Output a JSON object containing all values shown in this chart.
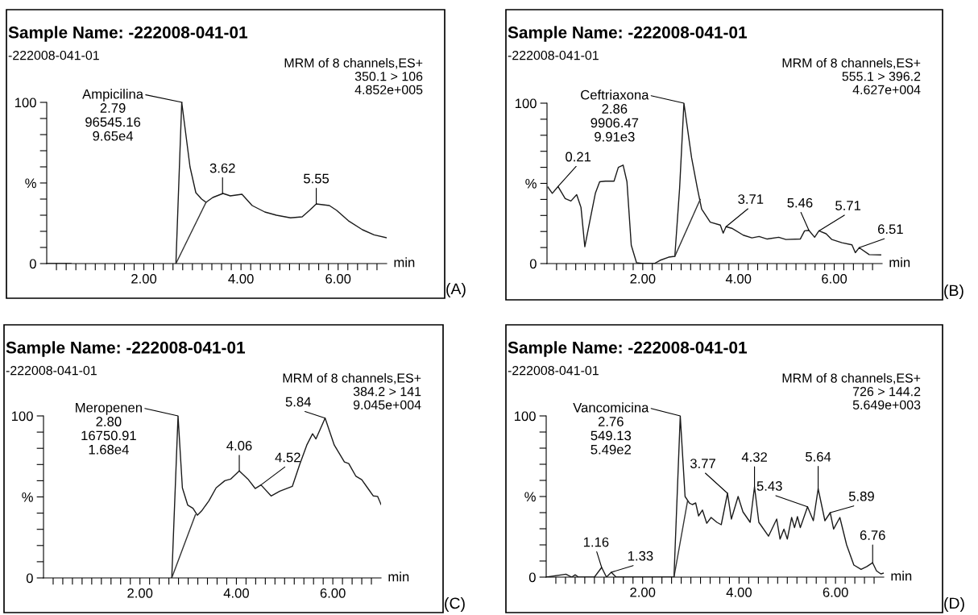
{
  "chart_data": [
    {
      "type": "line",
      "title": "Sample Name: -222008-041-01",
      "subtitle": "-222008-041-01",
      "xlabel": "min",
      "series": [
        {
          "color": "#1a1a1a",
          "x": [
            0,
            0.5,
            1.0,
            2.66,
            2.78,
            2.95,
            3.07,
            3.19,
            3.28,
            3.42,
            3.63,
            3.78,
            4.02,
            4.23,
            4.49,
            4.73,
            5.02,
            5.26,
            5.41,
            5.55,
            5.82,
            5.97,
            6.21,
            6.5,
            6.74,
            7.0
          ],
          "values": [
            0,
            0,
            null,
            0,
            100,
            60,
            44,
            40,
            38,
            41,
            43.5,
            42,
            43,
            36,
            32,
            30,
            28.4,
            29,
            33,
            37,
            36,
            33,
            26.6,
            21,
            17.8,
            16
          ]
        },
        {
          "color": "#333333",
          "x": [
            2.66,
            3.28
          ],
          "values": [
            0,
            38
          ]
        }
      ],
      "xlim": [
        0,
        7
      ],
      "ylim": [
        0,
        100
      ],
      "xticks": [
        {
          "value": 0.2,
          "label": null
        },
        {
          "value": 0.4,
          "label": null
        },
        {
          "value": 0.6,
          "label": null
        },
        {
          "value": 0.8,
          "label": null
        },
        {
          "value": 1,
          "label": null
        },
        {
          "value": 1.2,
          "label": null
        },
        {
          "value": 1.4,
          "label": null
        },
        {
          "value": 1.6,
          "label": null
        },
        {
          "value": 1.8,
          "label": null
        },
        {
          "value": 2,
          "label": "2.00"
        },
        {
          "value": 2.2,
          "label": null
        },
        {
          "value": 2.4,
          "label": null
        },
        {
          "value": 2.6,
          "label": null
        },
        {
          "value": 2.8,
          "label": null
        },
        {
          "value": 3,
          "label": null
        },
        {
          "value": 3.2,
          "label": null
        },
        {
          "value": 3.4,
          "label": null
        },
        {
          "value": 3.6,
          "label": null
        },
        {
          "value": 3.8,
          "label": null
        },
        {
          "value": 4,
          "label": "4.00"
        },
        {
          "value": 4.2,
          "label": null
        },
        {
          "value": 4.4,
          "label": null
        },
        {
          "value": 4.6,
          "label": null
        },
        {
          "value": 4.8,
          "label": null
        },
        {
          "value": 5,
          "label": null
        },
        {
          "value": 5.2,
          "label": null
        },
        {
          "value": 5.4,
          "label": null
        },
        {
          "value": 5.6,
          "label": null
        },
        {
          "value": 5.8,
          "label": null
        },
        {
          "value": 6,
          "label": "6.00"
        },
        {
          "value": 6.2,
          "label": null
        },
        {
          "value": 6.4,
          "label": null
        },
        {
          "value": 6.6,
          "label": null
        },
        {
          "value": 6.8,
          "label": null
        }
      ],
      "yticks": [
        0,
        {
          "value": 10,
          "label": null
        },
        {
          "value": 20,
          "label": null
        },
        {
          "value": 30,
          "label": null
        },
        {
          "value": 40,
          "label": null
        },
        {
          "value": 50,
          "label": "%"
        },
        {
          "value": 60,
          "label": null
        },
        {
          "value": 70,
          "label": null
        },
        {
          "value": 80,
          "label": null
        },
        {
          "value": 90,
          "label": null
        },
        100
      ],
      "annotations": [
        {
          "text": "Ampicilina\n2.79\n96545.16\n9.65e4",
          "x": 2.79,
          "y": 100
        },
        {
          "text": "3.62",
          "x": 3.62,
          "y": 43.5
        },
        {
          "text": "5.55",
          "x": 5.55,
          "y": 37
        },
        "MRM of 8 channels,ES+\n350.1 > 106\n4.852e+005",
        "(A)"
      ]
    },
    {
      "type": "line",
      "title": "Sample Name: -222008-041-01",
      "subtitle": "-222008-041-01",
      "xlabel": "min",
      "series": [
        {
          "color": "#1a1a1a",
          "x": [
            0.02,
            0.11,
            0.23,
            0.38,
            0.5,
            0.62,
            0.71,
            0.79,
            0.89,
            1.01,
            1.1,
            1.22,
            1.4,
            1.49,
            1.59,
            1.67,
            1.76,
            1.87,
            2.0,
            2.24,
            2.36,
            2.54,
            2.67,
            2.77,
            2.86,
            3.02,
            3.14,
            3.23,
            3.41,
            3.62,
            3.68,
            3.74,
            3.86,
            4.1,
            4.28,
            4.43,
            4.6,
            4.84,
            4.99,
            5.29,
            5.38,
            5.47,
            5.59,
            5.68,
            5.83,
            5.95,
            6.16,
            6.37,
            6.44,
            6.52,
            6.73,
            6.97
          ],
          "values": [
            47.7,
            43.8,
            48,
            40.5,
            39,
            43,
            35,
            10.5,
            25.8,
            43.8,
            51,
            51.4,
            51.4,
            60,
            61.4,
            51,
            11.4,
            0.5,
            0,
            0,
            2,
            4,
            4.5,
            47,
            100,
            66,
            47,
            34,
            25.8,
            24,
            19,
            23,
            22,
            17.7,
            16,
            16.9,
            15.3,
            16.4,
            15,
            15.3,
            20.4,
            20.7,
            16.4,
            20.4,
            18.6,
            15,
            13,
            11.7,
            6.8,
            9.9,
            5.6,
            5.4
          ]
        },
        {
          "color": "#333333",
          "x": [
            2.67,
            3.2
          ],
          "values": [
            4.5,
            40
          ]
        }
      ],
      "xlim": [
        0,
        7
      ],
      "ylim": [
        0,
        100
      ],
      "xticks": [
        {
          "value": 0.2,
          "label": null
        },
        {
          "value": 0.4,
          "label": null
        },
        {
          "value": 0.6,
          "label": null
        },
        {
          "value": 0.8,
          "label": null
        },
        {
          "value": 1,
          "label": null
        },
        {
          "value": 1.2,
          "label": null
        },
        {
          "value": 1.4,
          "label": null
        },
        {
          "value": 1.6,
          "label": null
        },
        {
          "value": 1.8,
          "label": null
        },
        {
          "value": 2,
          "label": "2.00"
        },
        {
          "value": 2.2,
          "label": null
        },
        {
          "value": 2.4,
          "label": null
        },
        {
          "value": 2.6,
          "label": null
        },
        {
          "value": 2.8,
          "label": null
        },
        {
          "value": 3,
          "label": null
        },
        {
          "value": 3.2,
          "label": null
        },
        {
          "value": 3.4,
          "label": null
        },
        {
          "value": 3.6,
          "label": null
        },
        {
          "value": 3.8,
          "label": null
        },
        {
          "value": 4,
          "label": "4.00"
        },
        {
          "value": 4.2,
          "label": null
        },
        {
          "value": 4.4,
          "label": null
        },
        {
          "value": 4.6,
          "label": null
        },
        {
          "value": 4.8,
          "label": null
        },
        {
          "value": 5,
          "label": null
        },
        {
          "value": 5.2,
          "label": null
        },
        {
          "value": 5.4,
          "label": null
        },
        {
          "value": 5.6,
          "label": null
        },
        {
          "value": 5.8,
          "label": null
        },
        {
          "value": 6,
          "label": "6.00"
        },
        {
          "value": 6.2,
          "label": null
        },
        {
          "value": 6.4,
          "label": null
        },
        {
          "value": 6.6,
          "label": null
        },
        {
          "value": 6.8,
          "label": null
        }
      ],
      "yticks": [
        0,
        {
          "value": 10,
          "label": null
        },
        {
          "value": 20,
          "label": null
        },
        {
          "value": 30,
          "label": null
        },
        {
          "value": 40,
          "label": null
        },
        {
          "value": 50,
          "label": "%"
        },
        {
          "value": 60,
          "label": null
        },
        {
          "value": 70,
          "label": null
        },
        {
          "value": 80,
          "label": null
        },
        {
          "value": 90,
          "label": null
        },
        100
      ],
      "annotations": [
        {
          "text": "Ceftriaxona\n2.86\n9906.47\n9.91e3",
          "x": 2.86,
          "y": 100
        },
        {
          "text": "0.21",
          "x": 0.23,
          "y": 48
        },
        {
          "text": "3.71",
          "x": 3.74,
          "y": 23
        },
        {
          "text": "5.46",
          "x": 5.47,
          "y": 20.7
        },
        {
          "text": "5.71",
          "x": 5.68,
          "y": 20.4
        },
        {
          "text": "6.51",
          "x": 6.52,
          "y": 9.9
        },
        "MRM of 8 channels,ES+\n555.1 > 396.2\n4.627e+004",
        "(B)"
      ]
    },
    {
      "type": "line",
      "title": "Sample Name: -222008-041-01",
      "subtitle": "-222008-041-01",
      "xlabel": "min",
      "series": [
        {
          "color": "#1a1a1a",
          "x": [
            2.66,
            2.79,
            2.88,
            2.99,
            3.1,
            3.19,
            3.28,
            3.43,
            3.58,
            3.76,
            3.88,
            4.06,
            4.24,
            4.39,
            4.51,
            4.72,
            4.9,
            5.16,
            5.31,
            5.46,
            5.58,
            5.65,
            5.84,
            6.03,
            6.24,
            6.33,
            6.48,
            6.6,
            6.72,
            6.84,
            6.93,
            7.0
          ],
          "values": [
            0,
            100,
            55.6,
            45,
            43,
            38.7,
            41.4,
            47.6,
            55.6,
            60,
            61,
            66,
            61,
            55.2,
            57.4,
            50.6,
            53.5,
            56.5,
            69.8,
            82,
            89,
            85.8,
            98.6,
            82,
            71.6,
            70.6,
            62.7,
            60.6,
            55.6,
            50.6,
            50.3,
            45.3
          ]
        },
        {
          "color": "#333333",
          "x": [
            2.66,
            3.15
          ],
          "values": [
            0,
            39
          ]
        }
      ],
      "xlim": [
        0,
        7
      ],
      "ylim": [
        0,
        100
      ],
      "xticks": [
        {
          "value": 0.2,
          "label": null
        },
        {
          "value": 0.4,
          "label": null
        },
        {
          "value": 0.6,
          "label": null
        },
        {
          "value": 0.8,
          "label": null
        },
        {
          "value": 1,
          "label": null
        },
        {
          "value": 1.2,
          "label": null
        },
        {
          "value": 1.4,
          "label": null
        },
        {
          "value": 1.6,
          "label": null
        },
        {
          "value": 1.8,
          "label": null
        },
        {
          "value": 2,
          "label": "2.00"
        },
        {
          "value": 2.2,
          "label": null
        },
        {
          "value": 2.4,
          "label": null
        },
        {
          "value": 2.6,
          "label": null
        },
        {
          "value": 2.8,
          "label": null
        },
        {
          "value": 3,
          "label": null
        },
        {
          "value": 3.2,
          "label": null
        },
        {
          "value": 3.4,
          "label": null
        },
        {
          "value": 3.6,
          "label": null
        },
        {
          "value": 3.8,
          "label": null
        },
        {
          "value": 4,
          "label": "4.00"
        },
        {
          "value": 4.2,
          "label": null
        },
        {
          "value": 4.4,
          "label": null
        },
        {
          "value": 4.6,
          "label": null
        },
        {
          "value": 4.8,
          "label": null
        },
        {
          "value": 5,
          "label": null
        },
        {
          "value": 5.2,
          "label": null
        },
        {
          "value": 5.4,
          "label": null
        },
        {
          "value": 5.6,
          "label": null
        },
        {
          "value": 5.8,
          "label": null
        },
        {
          "value": 6,
          "label": "6.00"
        },
        {
          "value": 6.2,
          "label": null
        },
        {
          "value": 6.4,
          "label": null
        },
        {
          "value": 6.6,
          "label": null
        },
        {
          "value": 6.8,
          "label": null
        }
      ],
      "yticks": [
        0,
        {
          "value": 10,
          "label": null
        },
        {
          "value": 20,
          "label": null
        },
        {
          "value": 30,
          "label": null
        },
        {
          "value": 40,
          "label": null
        },
        {
          "value": 50,
          "label": "%"
        },
        {
          "value": 60,
          "label": null
        },
        {
          "value": 70,
          "label": null
        },
        {
          "value": 80,
          "label": null
        },
        {
          "value": 90,
          "label": null
        },
        100
      ],
      "annotations": [
        {
          "text": "Meropenen\n2.80\n16750.91\n1.68e4",
          "x": 2.79,
          "y": 100
        },
        {
          "text": "4.06",
          "x": 4.06,
          "y": 66
        },
        {
          "text": "4.52",
          "x": 4.51,
          "y": 57.4
        },
        {
          "text": "5.84",
          "x": 5.84,
          "y": 98.6
        },
        "MRM of 8 channels,ES+\n384.2 > 141\n9.045e+004",
        "(C)"
      ]
    },
    {
      "type": "line",
      "title": "Sample Name: -222008-041-01",
      "subtitle": "-222008-041-01",
      "xlabel": "min",
      "series": [
        {
          "color": "#1a1a1a",
          "x": [
            0,
            0.41,
            0.53,
            0.6,
            0.67,
            1.0,
            1.15,
            1.25,
            1.35,
            1.45,
            2.65,
            2.78,
            2.88,
            2.97,
            3.03,
            3.1,
            3.16,
            3.24,
            3.33,
            3.42,
            3.54,
            3.63,
            3.76,
            3.84,
            3.98,
            4.08,
            4.23,
            4.32,
            4.41,
            4.61,
            4.78,
            4.85,
            4.93,
            5.0,
            5.09,
            5.15,
            5.21,
            5.27,
            5.42,
            5.54,
            5.64,
            5.78,
            5.89,
            5.96,
            6.09,
            6.23,
            6.38,
            6.53,
            6.65,
            6.77,
            6.85,
            6.94,
            7.0
          ],
          "values": [
            0,
            1.8,
            0,
            1.4,
            0,
            0,
            6,
            0,
            3,
            0,
            0,
            100,
            50,
            45.9,
            45,
            46,
            38,
            41.6,
            33.4,
            37,
            34,
            32.5,
            52,
            36,
            50,
            40.5,
            34,
            56,
            34,
            25.4,
            36,
            23.6,
            29.8,
            23.6,
            37,
            30.7,
            37.5,
            30.7,
            43.6,
            35,
            54.8,
            35,
            40,
            29.8,
            37,
            20,
            7.5,
            4.8,
            6.6,
            8.9,
            3.9,
            2,
            2.5
          ]
        },
        {
          "color": "#333333",
          "x": [
            2.65,
            2.93
          ],
          "values": [
            0,
            47
          ]
        }
      ],
      "xlim": [
        0,
        7
      ],
      "ylim": [
        0,
        100
      ],
      "xticks": [
        {
          "value": 0.2,
          "label": null
        },
        {
          "value": 0.4,
          "label": null
        },
        {
          "value": 0.6,
          "label": null
        },
        {
          "value": 0.8,
          "label": null
        },
        {
          "value": 1,
          "label": null
        },
        {
          "value": 1.2,
          "label": null
        },
        {
          "value": 1.4,
          "label": null
        },
        {
          "value": 1.6,
          "label": null
        },
        {
          "value": 1.8,
          "label": null
        },
        {
          "value": 2,
          "label": "2.00"
        },
        {
          "value": 2.2,
          "label": null
        },
        {
          "value": 2.4,
          "label": null
        },
        {
          "value": 2.6,
          "label": null
        },
        {
          "value": 2.8,
          "label": null
        },
        {
          "value": 3,
          "label": null
        },
        {
          "value": 3.2,
          "label": null
        },
        {
          "value": 3.4,
          "label": null
        },
        {
          "value": 3.6,
          "label": null
        },
        {
          "value": 3.8,
          "label": null
        },
        {
          "value": 4,
          "label": "4.00"
        },
        {
          "value": 4.2,
          "label": null
        },
        {
          "value": 4.4,
          "label": null
        },
        {
          "value": 4.6,
          "label": null
        },
        {
          "value": 4.8,
          "label": null
        },
        {
          "value": 5,
          "label": null
        },
        {
          "value": 5.2,
          "label": null
        },
        {
          "value": 5.4,
          "label": null
        },
        {
          "value": 5.6,
          "label": null
        },
        {
          "value": 5.8,
          "label": null
        },
        {
          "value": 6,
          "label": "6.00"
        },
        {
          "value": 6.2,
          "label": null
        },
        {
          "value": 6.4,
          "label": null
        },
        {
          "value": 6.6,
          "label": null
        },
        {
          "value": 6.8,
          "label": null
        }
      ],
      "yticks": [
        0,
        {
          "value": 10,
          "label": null
        },
        {
          "value": 20,
          "label": null
        },
        {
          "value": 30,
          "label": null
        },
        {
          "value": 40,
          "label": null
        },
        {
          "value": 50,
          "label": "%"
        },
        {
          "value": 60,
          "label": null
        },
        {
          "value": 70,
          "label": null
        },
        {
          "value": 80,
          "label": null
        },
        {
          "value": 90,
          "label": null
        },
        100
      ],
      "annotations": [
        {
          "text": "Vancomicina\n2.76\n549.13\n5.49e2",
          "x": 2.78,
          "y": 100
        },
        {
          "text": "1.16",
          "x": 1.15,
          "y": 6
        },
        {
          "text": "1.33",
          "x": 1.35,
          "y": 3
        },
        {
          "text": "3.77",
          "x": 3.76,
          "y": 52
        },
        {
          "text": "4.32",
          "x": 4.32,
          "y": 56
        },
        {
          "text": "5.43",
          "x": 5.42,
          "y": 43.6
        },
        {
          "text": "5.64",
          "x": 5.64,
          "y": 54.8
        },
        {
          "text": "5.89",
          "x": 5.89,
          "y": 40
        },
        {
          "text": "6.76",
          "x": 6.77,
          "y": 8.9
        },
        "MRM of 8 channels,ES+\n726 > 144.2\n5.649e+003",
        "(D)"
      ]
    }
  ]
}
